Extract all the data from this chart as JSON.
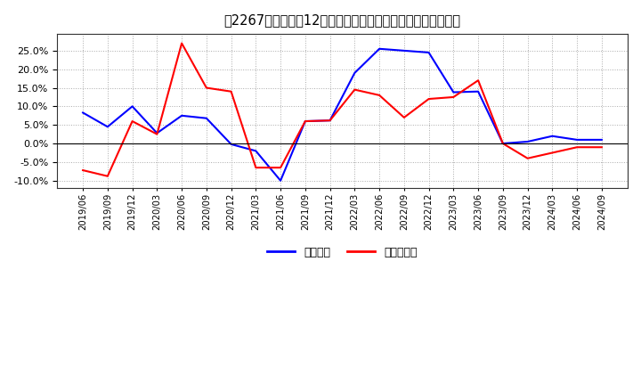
{
  "title": "［2267］　利益の12か月移動合計の対前年同期増減率の推移",
  "x_labels": [
    "2019/06",
    "2019/09",
    "2019/12",
    "2020/03",
    "2020/06",
    "2020/09",
    "2020/12",
    "2021/03",
    "2021/06",
    "2021/09",
    "2021/12",
    "2022/03",
    "2022/06",
    "2022/09",
    "2022/12",
    "2023/03",
    "2023/06",
    "2023/09",
    "2023/12",
    "2024/03",
    "2024/06",
    "2024/09"
  ],
  "keijo_rieki": [
    0.083,
    0.045,
    0.1,
    0.028,
    0.075,
    0.068,
    -0.002,
    -0.02,
    -0.1,
    0.06,
    0.062,
    0.19,
    0.255,
    0.25,
    0.245,
    0.138,
    0.14,
    0.0,
    0.005,
    0.02,
    0.01,
    0.01
  ],
  "toki_jun_rieki": [
    -0.072,
    -0.088,
    0.06,
    0.025,
    0.27,
    0.15,
    0.14,
    -0.065,
    -0.065,
    0.06,
    0.062,
    0.145,
    0.13,
    0.07,
    0.12,
    0.125,
    0.17,
    0.0,
    -0.04,
    -0.025,
    -0.01,
    -0.01
  ],
  "keijo_color": "#0000ff",
  "toki_color": "#ff0000",
  "background_color": "#ffffff",
  "grid_color": "#aaaaaa",
  "ylim": [
    -0.12,
    0.295
  ],
  "yticks": [
    -0.1,
    -0.05,
    0.0,
    0.05,
    0.1,
    0.15,
    0.2,
    0.25
  ],
  "legend_keijo": "経常利益",
  "legend_toki": "当期純利益"
}
